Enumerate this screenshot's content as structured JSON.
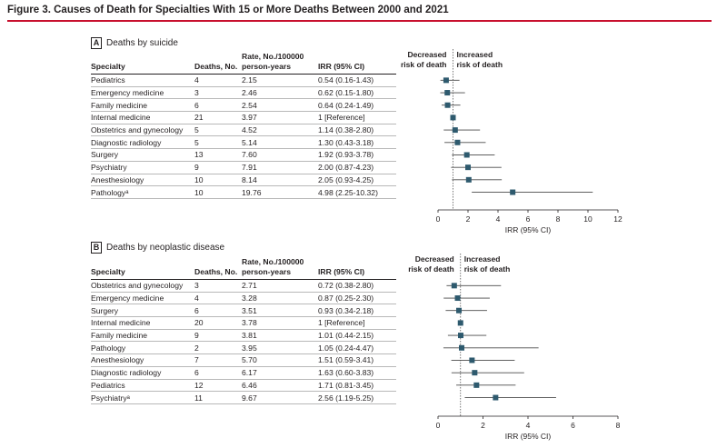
{
  "figure_title": "Figure 3. Causes of Death for Specialties With 15 or More Deaths Between 2000 and 2021",
  "colors": {
    "accent_rule": "#c8102e",
    "marker": "#2e5a6e",
    "ci_line": "#4a4a4a",
    "ref_line": "#555555"
  },
  "chart_data": [
    {
      "type": "forest",
      "panel": "A",
      "title": "Deaths by suicide",
      "columns": [
        "Specialty",
        "Deaths, No.",
        "Rate, No./100000 person-years",
        "IRR (95% CI)"
      ],
      "column_header_lines": {
        "specialty": "Specialty",
        "deaths": "Deaths, No.",
        "rate_top": "Rate, No./100000",
        "rate_bottom": "person-years",
        "irr": "IRR (95% CI)"
      },
      "rows": [
        {
          "specialty": "Pediatrics",
          "deaths": "4",
          "rate": "2.15",
          "irr_text": "0.54 (0.16-1.43)",
          "irr": 0.54,
          "lo": 0.16,
          "hi": 1.43
        },
        {
          "specialty": "Emergency medicine",
          "deaths": "3",
          "rate": "2.46",
          "irr_text": "0.62 (0.15-1.80)",
          "irr": 0.62,
          "lo": 0.15,
          "hi": 1.8
        },
        {
          "specialty": "Family medicine",
          "deaths": "6",
          "rate": "2.54",
          "irr_text": "0.64 (0.24-1.49)",
          "irr": 0.64,
          "lo": 0.24,
          "hi": 1.49
        },
        {
          "specialty": "Internal medicine",
          "deaths": "21",
          "rate": "3.97",
          "irr_text": "1 [Reference]",
          "irr": 1,
          "lo": 1,
          "hi": 1
        },
        {
          "specialty": "Obstetrics and gynecology",
          "deaths": "5",
          "rate": "4.52",
          "irr_text": "1.14 (0.38-2.80)",
          "irr": 1.14,
          "lo": 0.38,
          "hi": 2.8
        },
        {
          "specialty": "Diagnostic radiology",
          "deaths": "5",
          "rate": "5.14",
          "irr_text": "1.30 (0.43-3.18)",
          "irr": 1.3,
          "lo": 0.43,
          "hi": 3.18
        },
        {
          "specialty": "Surgery",
          "deaths": "13",
          "rate": "7.60",
          "irr_text": "1.92 (0.93-3.78)",
          "irr": 1.92,
          "lo": 0.93,
          "hi": 3.78
        },
        {
          "specialty": "Psychiatry",
          "deaths": "9",
          "rate": "7.91",
          "irr_text": "2.00 (0.87-4.23)",
          "irr": 2.0,
          "lo": 0.87,
          "hi": 4.23
        },
        {
          "specialty": "Anesthesiology",
          "deaths": "10",
          "rate": "8.14",
          "irr_text": "2.05 (0.93-4.25)",
          "irr": 2.05,
          "lo": 0.93,
          "hi": 4.25
        },
        {
          "specialty": "Pathologyᵃ",
          "deaths": "10",
          "rate": "19.76",
          "irr_text": "4.98 (2.25-10.32)",
          "irr": 4.98,
          "lo": 2.25,
          "hi": 10.32
        }
      ],
      "xlim": [
        0,
        12
      ],
      "xticks": [
        0,
        2,
        4,
        6,
        8,
        10,
        12
      ],
      "xlabel": "IRR (95% CI)",
      "reference_value": 1,
      "label_left": [
        "Decreased",
        "risk of death"
      ],
      "label_right": [
        "Increased",
        "risk of death"
      ]
    },
    {
      "type": "forest",
      "panel": "B",
      "title": "Deaths by neoplastic disease",
      "columns": [
        "Specialty",
        "Deaths, No.",
        "Rate, No./100000 person-years",
        "IRR (95% CI)"
      ],
      "column_header_lines": {
        "specialty": "Specialty",
        "deaths": "Deaths, No.",
        "rate_top": "Rate, No./100000",
        "rate_bottom": "person-years",
        "irr": "IRR (95% CI)"
      },
      "rows": [
        {
          "specialty": "Obstetrics and gynecology",
          "deaths": "3",
          "rate": "2.71",
          "irr_text": "0.72 (0.38-2.80)",
          "irr": 0.72,
          "lo": 0.38,
          "hi": 2.8
        },
        {
          "specialty": "Emergency medicine",
          "deaths": "4",
          "rate": "3.28",
          "irr_text": "0.87 (0.25-2.30)",
          "irr": 0.87,
          "lo": 0.25,
          "hi": 2.3
        },
        {
          "specialty": "Surgery",
          "deaths": "6",
          "rate": "3.51",
          "irr_text": "0.93 (0.34-2.18)",
          "irr": 0.93,
          "lo": 0.34,
          "hi": 2.18
        },
        {
          "specialty": "Internal medicine",
          "deaths": "20",
          "rate": "3.78",
          "irr_text": "1 [Reference]",
          "irr": 1,
          "lo": 1,
          "hi": 1
        },
        {
          "specialty": "Family medicine",
          "deaths": "9",
          "rate": "3.81",
          "irr_text": "1.01 (0.44-2.15)",
          "irr": 1.01,
          "lo": 0.44,
          "hi": 2.15
        },
        {
          "specialty": "Pathology",
          "deaths": "2",
          "rate": "3.95",
          "irr_text": "1.05 (0.24-4.47)",
          "irr": 1.05,
          "lo": 0.24,
          "hi": 4.47
        },
        {
          "specialty": "Anesthesiology",
          "deaths": "7",
          "rate": "5.70",
          "irr_text": "1.51 (0.59-3.41)",
          "irr": 1.51,
          "lo": 0.59,
          "hi": 3.41
        },
        {
          "specialty": "Diagnostic radiology",
          "deaths": "6",
          "rate": "6.17",
          "irr_text": "1.63 (0.60-3.83)",
          "irr": 1.63,
          "lo": 0.6,
          "hi": 3.83
        },
        {
          "specialty": "Pediatrics",
          "deaths": "12",
          "rate": "6.46",
          "irr_text": "1.71 (0.81-3.45)",
          "irr": 1.71,
          "lo": 0.81,
          "hi": 3.45
        },
        {
          "specialty": "Psychiatryᵃ",
          "deaths": "11",
          "rate": "9.67",
          "irr_text": "2.56 (1.19-5.25)",
          "irr": 2.56,
          "lo": 1.19,
          "hi": 5.25
        }
      ],
      "xlim": [
        0,
        8
      ],
      "xticks": [
        0,
        2,
        4,
        6,
        8
      ],
      "xlabel": "IRR (95% CI)",
      "reference_value": 1,
      "label_left": [
        "Decreased",
        "risk of death"
      ],
      "label_right": [
        "Increased",
        "risk of death"
      ]
    }
  ]
}
